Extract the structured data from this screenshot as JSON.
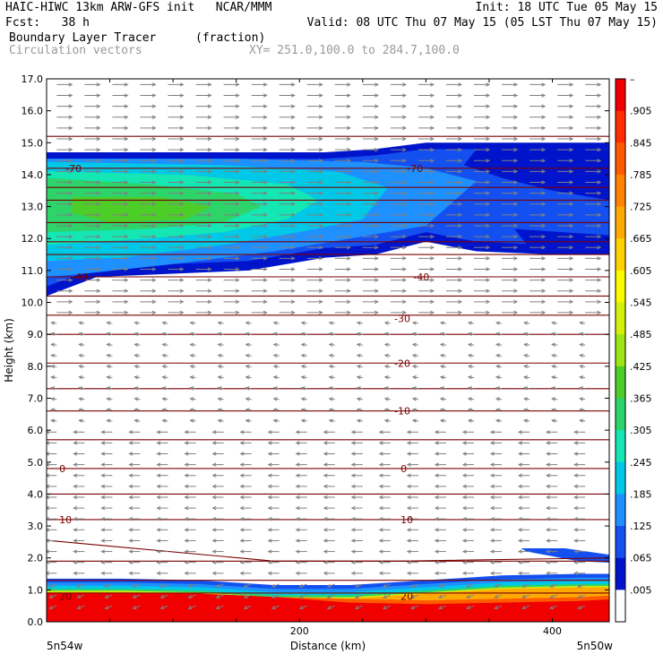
{
  "header": {
    "line1_left": "HAIC-HIWC 13km ARW-GFS init   NCAR/MMM",
    "line1_right": "Init: 18 UTC Tue 05 May 15",
    "fcst_label": "Fcst:   38 h",
    "valid": "Valid: 08 UTC Thu 07 May 15 (05 LST Thu 07 May 15)",
    "field_name": "Boundary Layer Tracer",
    "field_unit": "(fraction)",
    "overlay_name": "Circulation vectors",
    "xy_range": "XY= 251.0,100.0 to 284.7,100.0"
  },
  "colors": {
    "contour": "#7a0000",
    "vector": "#808080"
  },
  "chart_data": {
    "type": "heatmap",
    "xlabel": "Distance (km)",
    "ylabel": "Height (km)",
    "xlim": [
      0,
      445
    ],
    "ylim": [
      0,
      17
    ],
    "x_ticks": [
      200,
      400
    ],
    "x_tick_labels": [
      "200",
      "400"
    ],
    "x_end_labels": [
      "5n54w",
      "5n50w"
    ],
    "y_ticks": [
      "0.0",
      "1.0",
      "2.0",
      "3.0",
      "4.0",
      "5.0",
      "6.0",
      "7.0",
      "8.0",
      "9.0",
      "10.0",
      "11.0",
      "12.0",
      "13.0",
      "14.0",
      "15.0",
      "16.0",
      "17.0"
    ],
    "colorbar_labels": [
      ".005",
      ".065",
      ".125",
      ".185",
      ".245",
      ".305",
      ".365",
      ".425",
      ".485",
      ".545",
      ".605",
      ".665",
      ".725",
      ".785",
      ".845",
      ".905",
      "–"
    ],
    "tracer_fraction": {
      "surface_layer": {
        "top_km": 0.9,
        "value": 0.95
      },
      "transition_layer": {
        "from_km": 0.9,
        "to_km": 1.4
      },
      "anvil_west": {
        "x_km": 0,
        "bottom_km": 10.2,
        "top_km": 14.8,
        "peak": 0.35
      },
      "anvil_east": {
        "x_km": 445,
        "bottom_km": 11.5,
        "top_km": 15.0,
        "peak": 0.05
      },
      "patch_east": {
        "from_x_km": 375,
        "to_x_km": 445,
        "bottom_km": 1.9,
        "top_km": 2.3
      }
    },
    "temperature_contours": [
      {
        "label": "-70",
        "heights_km": [
          14.2,
          14.2
        ]
      },
      {
        "label": "-40",
        "heights_km": [
          10.8,
          10.8
        ]
      },
      {
        "label": "-30",
        "heights_km": [
          9.6,
          9.4
        ]
      },
      {
        "label": "-20",
        "heights_km": [
          8.1,
          8.1
        ]
      },
      {
        "label": "-10",
        "heights_km": [
          6.6,
          6.6
        ]
      },
      {
        "label": "0",
        "heights_km": [
          4.8,
          4.8
        ]
      },
      {
        "label": "10",
        "heights_km": [
          3.2,
          3.2
        ]
      },
      {
        "label": "20",
        "heights_km": [
          0.9,
          0.9
        ]
      }
    ],
    "contour_label_positions": [
      {
        "label": "-70",
        "x_km": 15,
        "z_km": 14.2
      },
      {
        "label": "-70",
        "x_km": 285,
        "z_km": 14.2
      },
      {
        "label": "-40",
        "x_km": 20,
        "z_km": 10.8
      },
      {
        "label": "-40",
        "x_km": 290,
        "z_km": 10.8
      },
      {
        "label": "-30",
        "x_km": 275,
        "z_km": 9.5
      },
      {
        "label": "-20",
        "x_km": 275,
        "z_km": 8.1
      },
      {
        "label": "-10",
        "x_km": 275,
        "z_km": 6.6
      },
      {
        "label": "0",
        "x_km": 10,
        "z_km": 4.8
      },
      {
        "label": "0",
        "x_km": 280,
        "z_km": 4.8
      },
      {
        "label": "10",
        "x_km": 10,
        "z_km": 3.2
      },
      {
        "label": "10",
        "x_km": 280,
        "z_km": 3.2
      },
      {
        "label": "20",
        "x_km": 10,
        "z_km": 0.8
      },
      {
        "label": "20",
        "x_km": 280,
        "z_km": 0.8
      }
    ]
  }
}
